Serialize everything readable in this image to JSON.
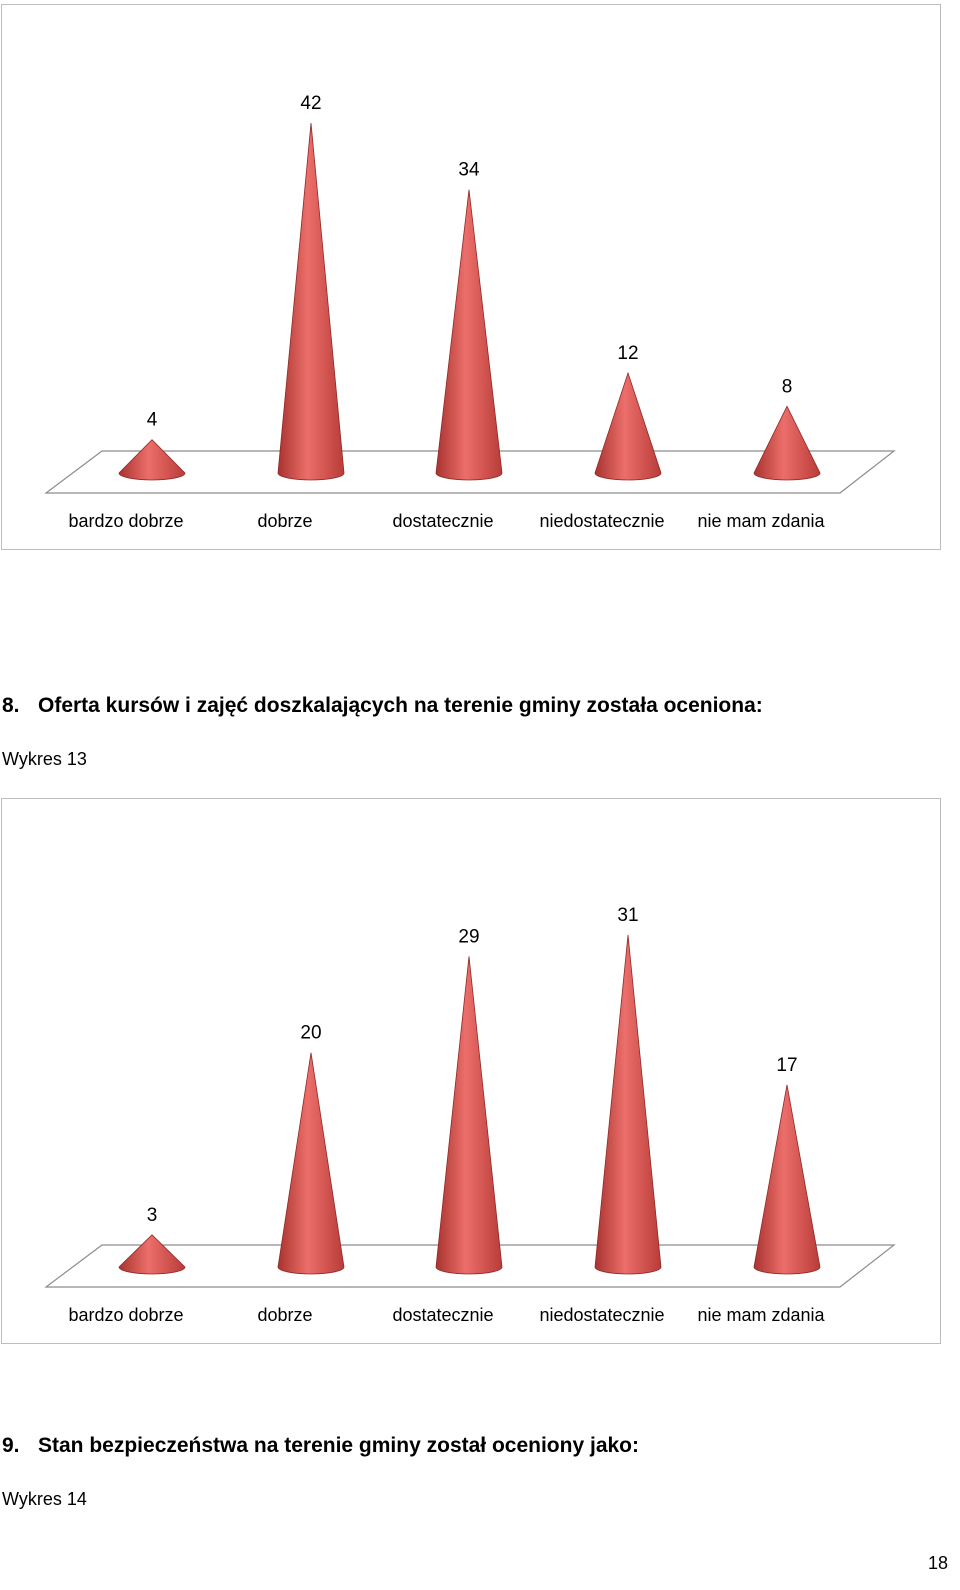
{
  "chart_data": [
    {
      "type": "bar",
      "categories": [
        "bardzo dobrze",
        "dobrze",
        "dostatecznie",
        "niedostatecznie",
        "nie mam zdania"
      ],
      "values": [
        4,
        42,
        34,
        12,
        8
      ],
      "title": "",
      "xlabel": "",
      "ylabel": "",
      "ylim": [
        0,
        45
      ],
      "grid": false,
      "legend": "none",
      "bar_color": "#d9534f"
    },
    {
      "type": "bar",
      "categories": [
        "bardzo dobrze",
        "dobrze",
        "dostatecznie",
        "niedostatecznie",
        "nie mam zdania"
      ],
      "values": [
        3,
        20,
        29,
        31,
        17
      ],
      "title": "",
      "xlabel": "",
      "ylabel": "",
      "ylim": [
        0,
        35
      ],
      "grid": false,
      "legend": "none",
      "bar_color": "#d9534f"
    }
  ],
  "document": {
    "section8": {
      "number": "8.",
      "text": "Oferta kursów i zajęć doszkalających na terenie gminy została oceniona:"
    },
    "caption13": "Wykres 13",
    "section9": {
      "number": "9.",
      "text": "Stan bezpieczeństwa na terenie gminy został oceniony jako:"
    },
    "caption14": "Wykres 14",
    "page_number": "18"
  }
}
